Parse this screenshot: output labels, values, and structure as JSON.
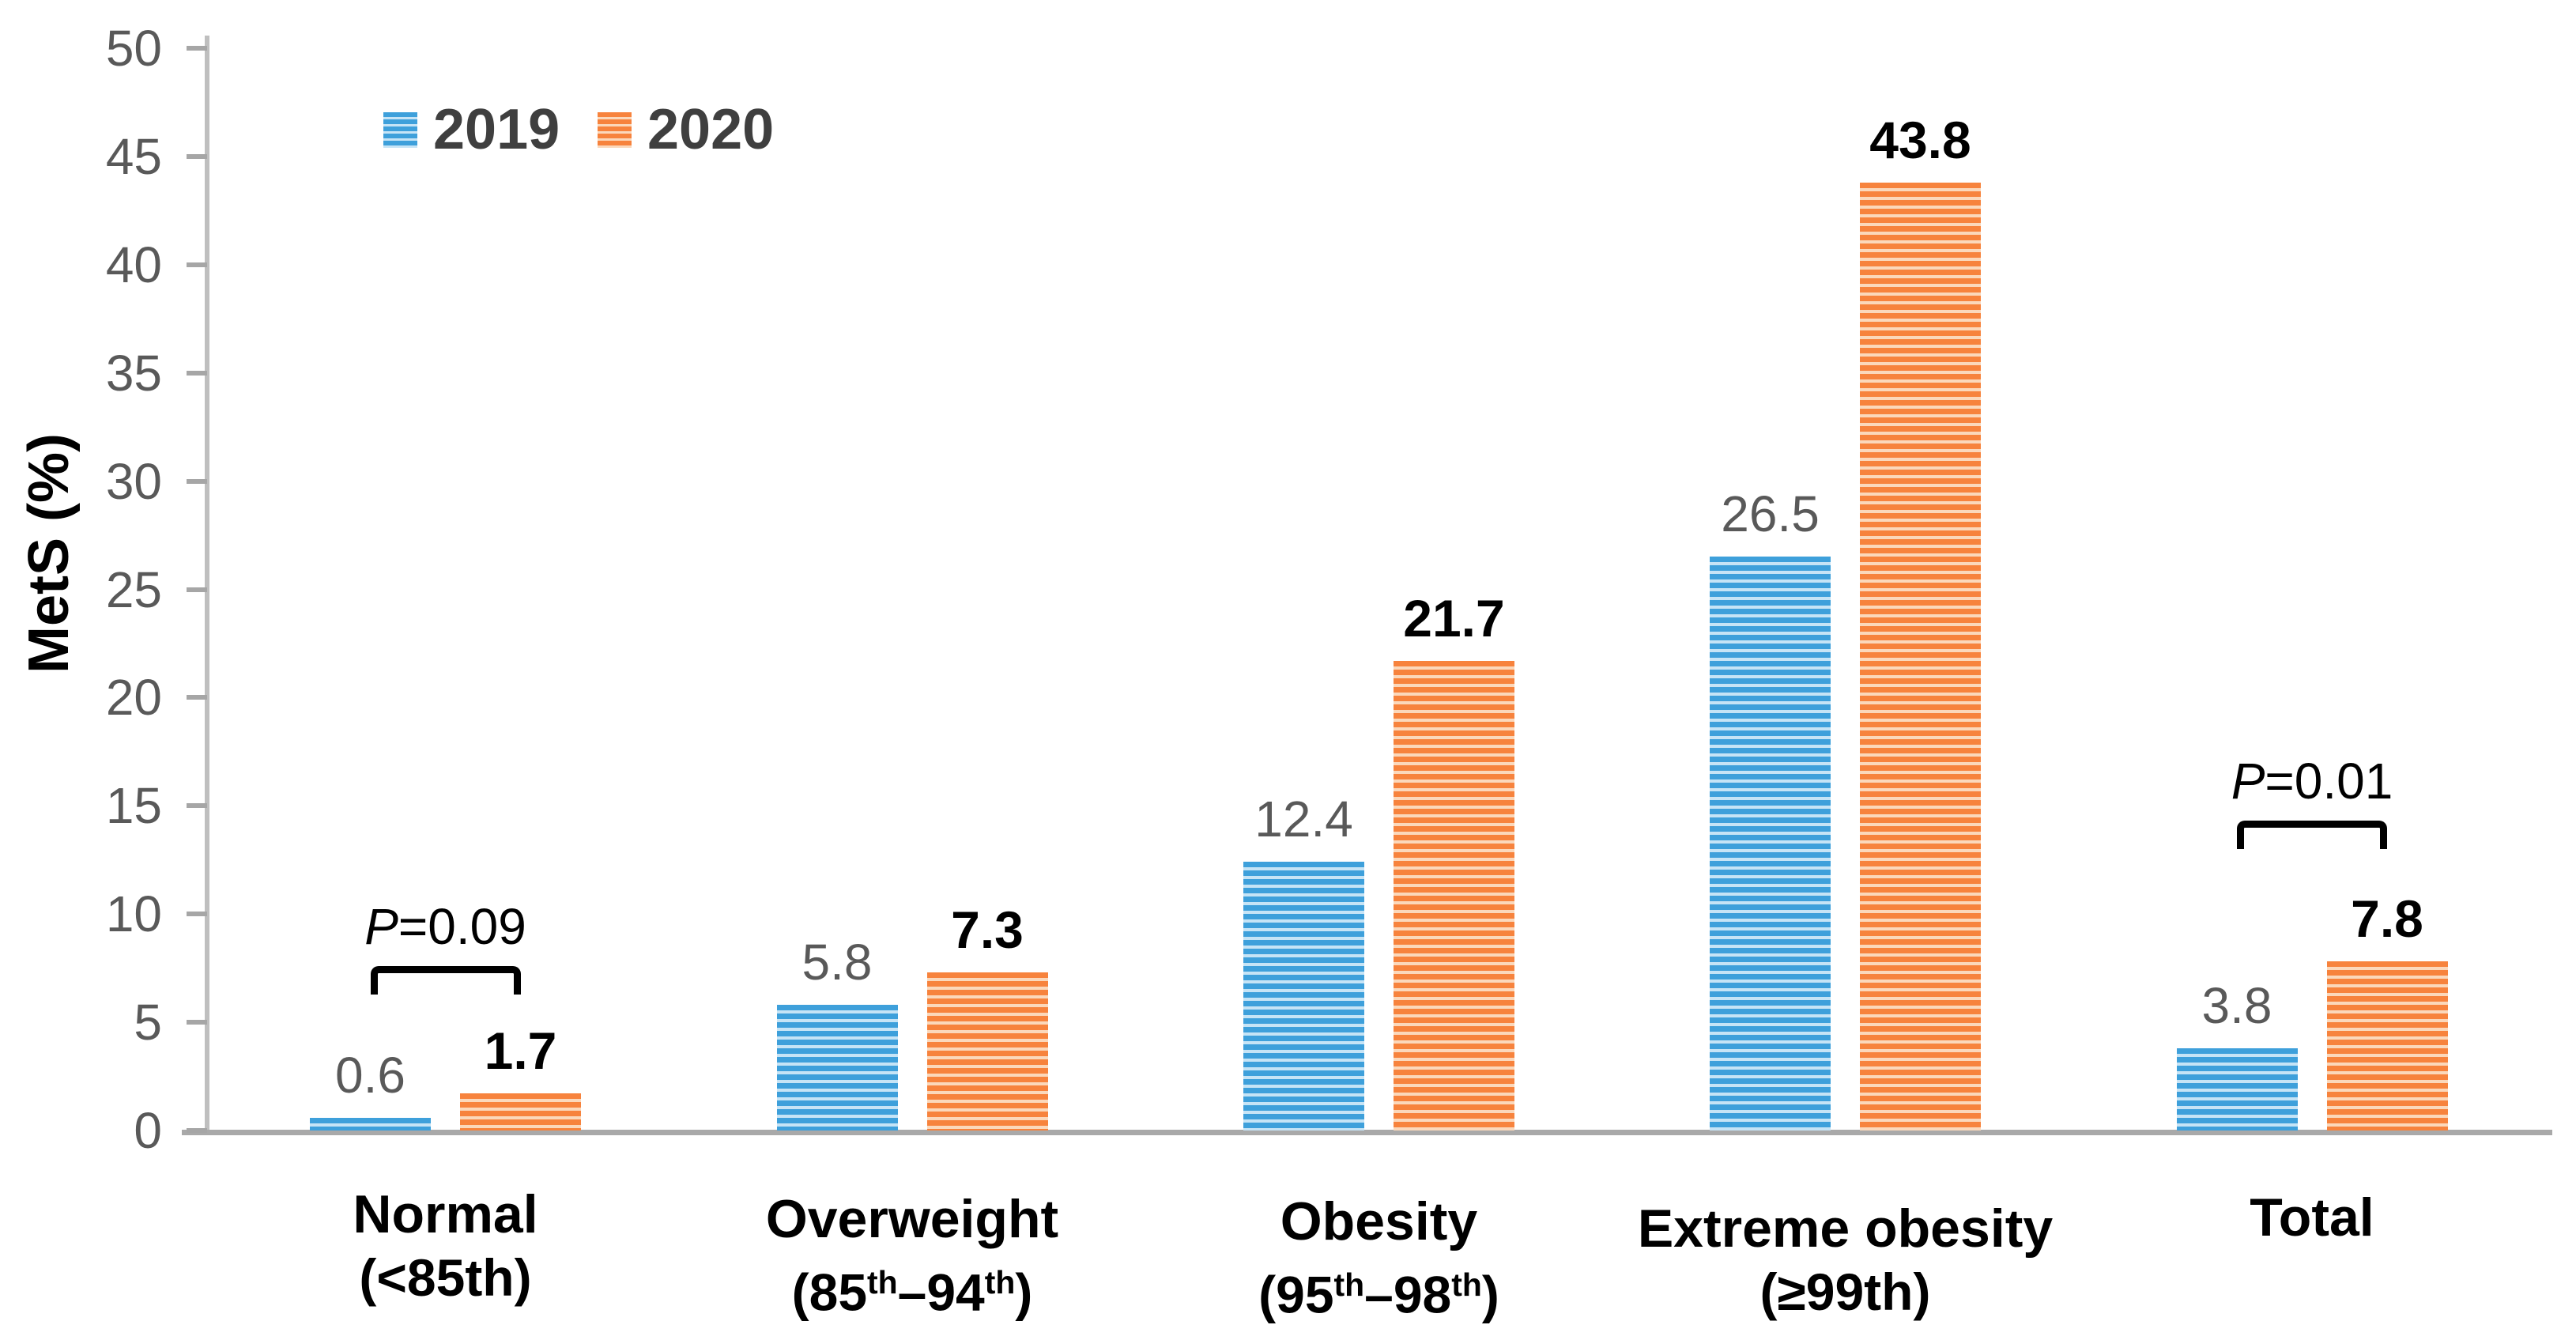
{
  "chart_data": {
    "type": "bar",
    "title": "",
    "xlabel": "",
    "ylabel": "MetS (%)",
    "ylim": [
      0,
      50
    ],
    "yticks": [
      0,
      5,
      10,
      15,
      20,
      25,
      30,
      35,
      40,
      45,
      50
    ],
    "grid": false,
    "legend_position": "top-left",
    "categories": [
      {
        "line1": "Normal",
        "line2": [
          [
            "(<85th)",
            false
          ]
        ]
      },
      {
        "line1": "Overweight",
        "line2": [
          [
            "(85",
            false
          ],
          [
            "th",
            true
          ],
          [
            "–94",
            false
          ],
          [
            "th",
            true
          ],
          [
            ")",
            false
          ]
        ]
      },
      {
        "line1": "Obesity",
        "line2": [
          [
            "(95",
            false
          ],
          [
            "th",
            true
          ],
          [
            "–98",
            false
          ],
          [
            "th",
            true
          ],
          [
            ")",
            false
          ]
        ]
      },
      {
        "line1": "Extreme obesity",
        "line2": [
          [
            "(≥99th)",
            false
          ]
        ]
      },
      {
        "line1": "Total",
        "line2": []
      }
    ],
    "series": [
      {
        "name": "2019",
        "values": [
          0.6,
          5.8,
          12.4,
          26.5,
          3.8
        ],
        "color": "#3EA0DB",
        "stripe_color": "#C6E4F6",
        "value_label_color": "#595959",
        "value_label_bold": false
      },
      {
        "name": "2020",
        "values": [
          1.7,
          7.3,
          21.7,
          43.8,
          7.8
        ],
        "color": "#F7833D",
        "stripe_color": "#FBD8BB",
        "value_label_color": "#000000",
        "value_label_bold": true
      }
    ],
    "annotations": [
      {
        "p_label": "P",
        "p_value": "=0.09",
        "group_index": 0
      },
      {
        "p_label": "P",
        "p_value": "=0.01",
        "group_index": 4
      }
    ],
    "colors": {
      "axis_line": "#BFBFBF",
      "baseline": "#A9A9A9",
      "tick_text": "#595959",
      "legend_text": "#3F3F3F"
    }
  }
}
